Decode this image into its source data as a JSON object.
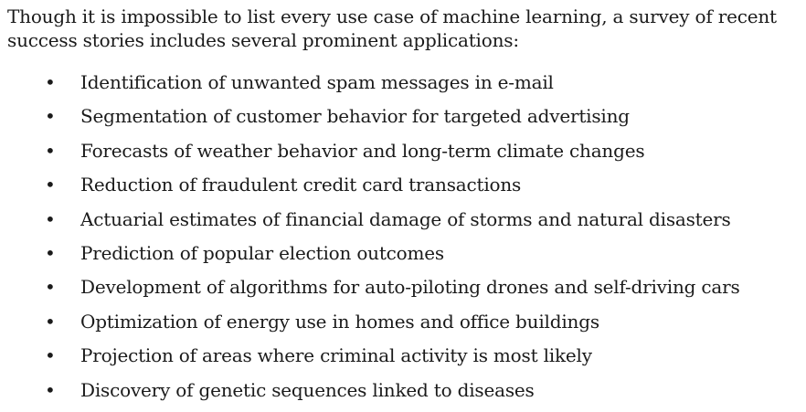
{
  "intro": {
    "text": "Though it is impossible to list every use case of machine learning, a survey of recent success stories includes several prominent applications:"
  },
  "bullet_symbol": "•",
  "applications": [
    "Identification of unwanted spam messages in e-mail",
    "Segmentation of customer behavior for targeted advertising",
    "Forecasts of weather behavior and long-term climate changes",
    "Reduction of fraudulent credit card transactions",
    "Actuarial estimates of financial damage of storms and natural disasters",
    "Prediction of popular election outcomes",
    "Development of algorithms for auto-piloting drones and self-driving cars",
    "Optimization of energy use in homes and office buildings",
    "Projection of areas where criminal activity is most likely",
    "Discovery of genetic sequences linked to diseases"
  ]
}
